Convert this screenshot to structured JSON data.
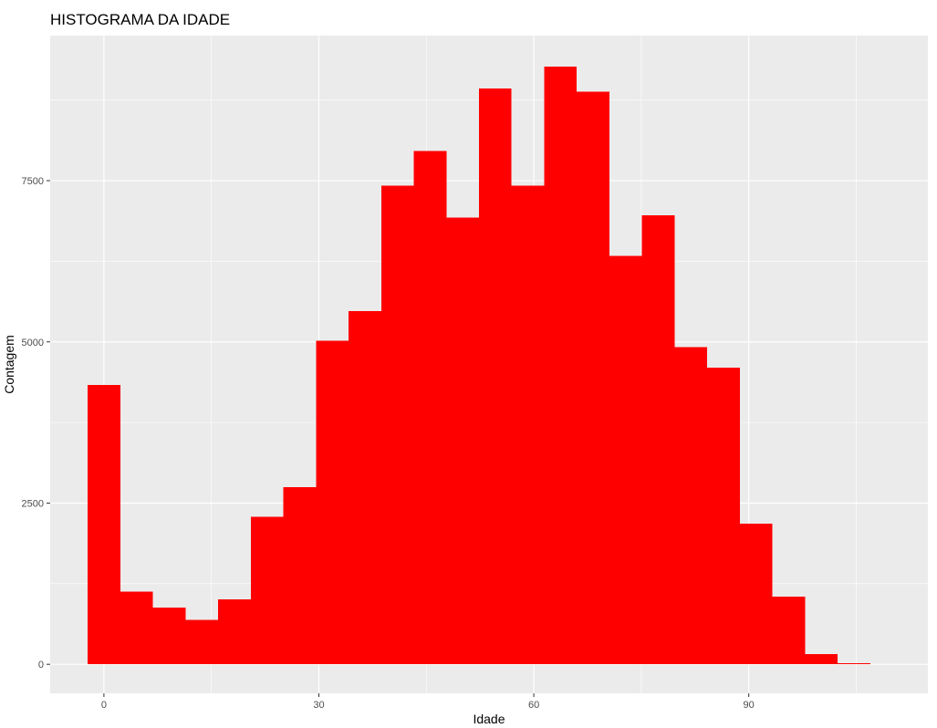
{
  "chart_data": {
    "type": "bar",
    "title": "HISTOGRAMA DA IDADE",
    "xlabel": "Idade",
    "ylabel": "Contagem",
    "x_ticks": [
      0,
      30,
      60,
      90
    ],
    "y_ticks": [
      0,
      2500,
      5000,
      7500
    ],
    "xlim": [
      -7.5,
      115
    ],
    "ylim": [
      -450,
      9750
    ],
    "grid": true,
    "bar_color": "#ff0000",
    "panel_background": "#ebebeb",
    "grid_color": "#ffffff",
    "bins": [
      {
        "start": -2.25,
        "end": 2.3,
        "count": 4330
      },
      {
        "start": 2.3,
        "end": 6.85,
        "count": 1130
      },
      {
        "start": 6.85,
        "end": 11.4,
        "count": 880
      },
      {
        "start": 11.4,
        "end": 15.95,
        "count": 690
      },
      {
        "start": 15.95,
        "end": 20.5,
        "count": 1010
      },
      {
        "start": 20.5,
        "end": 25.05,
        "count": 2290
      },
      {
        "start": 25.05,
        "end": 29.6,
        "count": 2750
      },
      {
        "start": 29.6,
        "end": 34.15,
        "count": 5020
      },
      {
        "start": 34.15,
        "end": 38.7,
        "count": 5480
      },
      {
        "start": 38.7,
        "end": 43.25,
        "count": 7420
      },
      {
        "start": 43.25,
        "end": 47.8,
        "count": 7960
      },
      {
        "start": 47.8,
        "end": 52.35,
        "count": 6930
      },
      {
        "start": 52.35,
        "end": 56.9,
        "count": 8930
      },
      {
        "start": 56.9,
        "end": 61.45,
        "count": 7420
      },
      {
        "start": 61.45,
        "end": 66.0,
        "count": 9270
      },
      {
        "start": 66.0,
        "end": 70.55,
        "count": 8880
      },
      {
        "start": 70.55,
        "end": 75.1,
        "count": 6330
      },
      {
        "start": 75.1,
        "end": 79.65,
        "count": 6960
      },
      {
        "start": 79.65,
        "end": 84.2,
        "count": 4920
      },
      {
        "start": 84.2,
        "end": 88.75,
        "count": 4600
      },
      {
        "start": 88.75,
        "end": 93.3,
        "count": 2180
      },
      {
        "start": 93.3,
        "end": 97.85,
        "count": 1050
      },
      {
        "start": 97.85,
        "end": 102.4,
        "count": 160
      },
      {
        "start": 102.4,
        "end": 106.95,
        "count": 20
      }
    ]
  }
}
